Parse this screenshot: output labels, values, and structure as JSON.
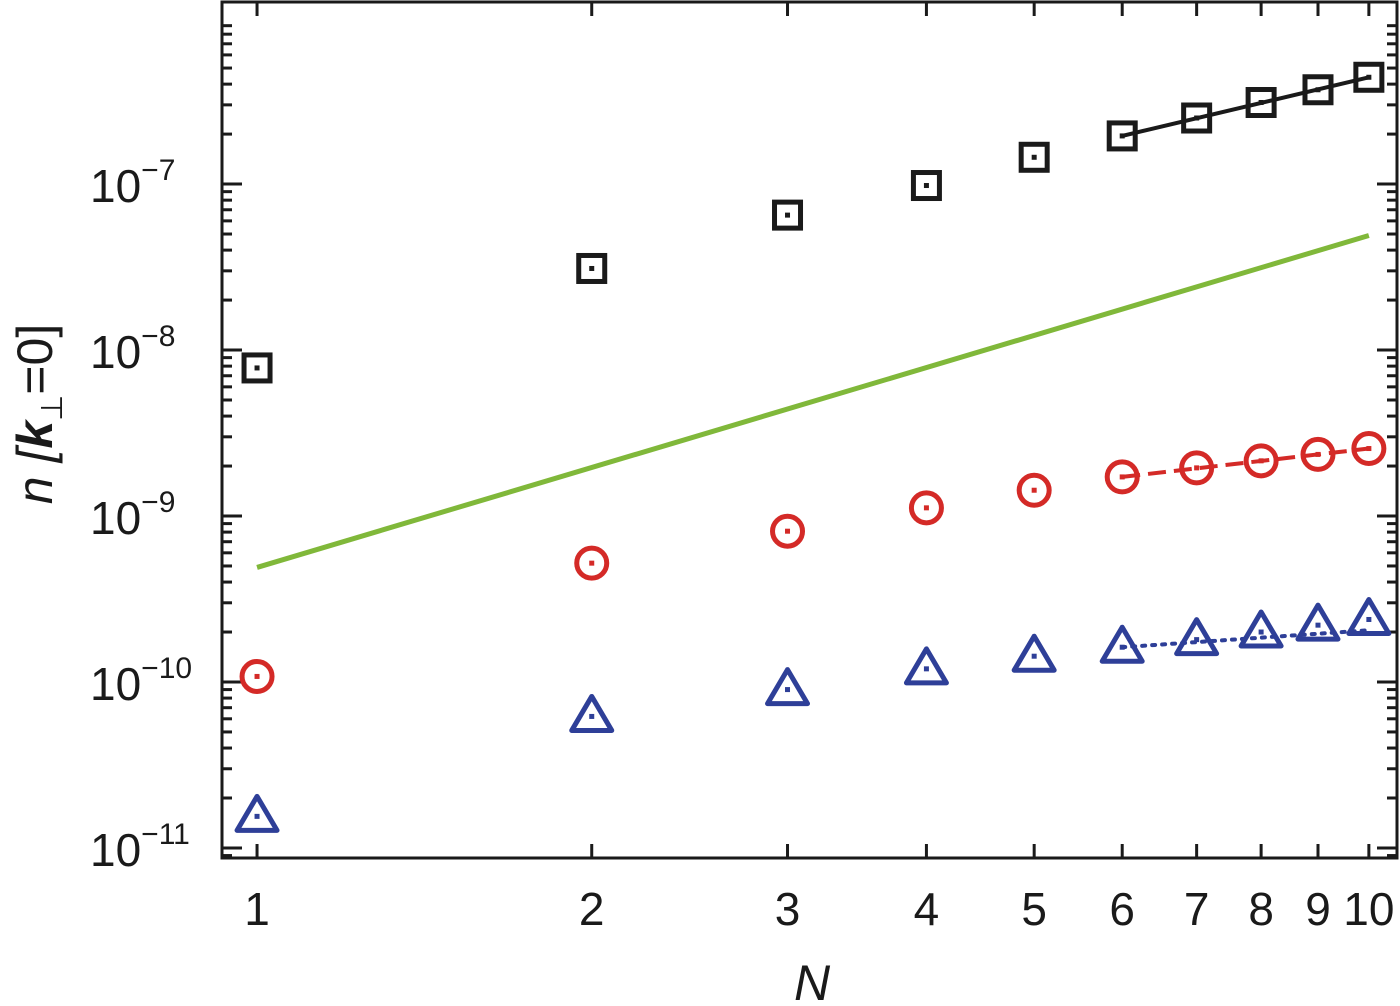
{
  "chart_data": {
    "type": "scatter",
    "xscale": "log",
    "yscale": "log",
    "xlim": [
      0.93,
      10.6
    ],
    "ylim": [
      8.7e-12,
      1.25e-06
    ],
    "xlabel": "N",
    "ylabel": {
      "prefix": "n [",
      "symbol": "k",
      "subscript": "⊥",
      "suffix": "=0]"
    },
    "x_ticks": [
      1,
      2,
      3,
      4,
      5,
      6,
      7,
      8,
      9,
      10
    ],
    "x_tick_labels": [
      "1",
      "2",
      "3",
      "4",
      "5",
      "6",
      "7",
      "8",
      "9",
      "10"
    ],
    "y_ticks": [
      {
        "value": 1e-11,
        "base": "10",
        "exp": "−11"
      },
      {
        "value": 1e-10,
        "base": "10",
        "exp": "−10"
      },
      {
        "value": 1e-09,
        "base": "10",
        "exp": "−9"
      },
      {
        "value": 1e-08,
        "base": "10",
        "exp": "−8"
      },
      {
        "value": 1e-07,
        "base": "10",
        "exp": "−7"
      }
    ],
    "grid": false,
    "series": [
      {
        "marker": "square",
        "color": "#1a1a1a",
        "x": [
          1,
          2,
          3,
          4,
          5,
          6,
          7,
          8,
          9,
          10
        ],
        "y": [
          7.8e-09,
          3.1e-08,
          6.5e-08,
          9.8e-08,
          1.45e-07,
          1.95e-07,
          2.5e-07,
          3.1e-07,
          3.7e-07,
          4.4e-07
        ],
        "fit": {
          "style": "solid",
          "x": [
            6,
            10
          ],
          "y": [
            1.95e-07,
            4.4e-07
          ]
        }
      },
      {
        "marker": "circle",
        "color": "#d42a27",
        "x": [
          1,
          2,
          3,
          4,
          5,
          6,
          7,
          8,
          9,
          10
        ],
        "y": [
          1.08e-10,
          5.2e-10,
          8.1e-10,
          1.12e-09,
          1.43e-09,
          1.72e-09,
          1.95e-09,
          2.15e-09,
          2.35e-09,
          2.55e-09
        ],
        "fit": {
          "style": "dashed",
          "x": [
            6,
            10
          ],
          "y": [
            1.72e-09,
            2.55e-09
          ]
        }
      },
      {
        "marker": "triangle",
        "color": "#2e3f98",
        "x": [
          1,
          2,
          3,
          4,
          5,
          6,
          7,
          8,
          9,
          10
        ],
        "y": [
          1.55e-11,
          6.2e-11,
          9e-11,
          1.2e-10,
          1.43e-10,
          1.62e-10,
          1.8e-10,
          2e-10,
          2.2e-10,
          2.38e-10
        ],
        "fit": {
          "style": "dotted",
          "x": [
            6,
            10
          ],
          "y": [
            1.62e-10,
            2.05e-10
          ]
        }
      },
      {
        "marker": "none",
        "color": "#80b83a",
        "style": "solid",
        "x": [
          1,
          10
        ],
        "y": [
          4.9e-10,
          4.9e-08
        ]
      }
    ]
  }
}
